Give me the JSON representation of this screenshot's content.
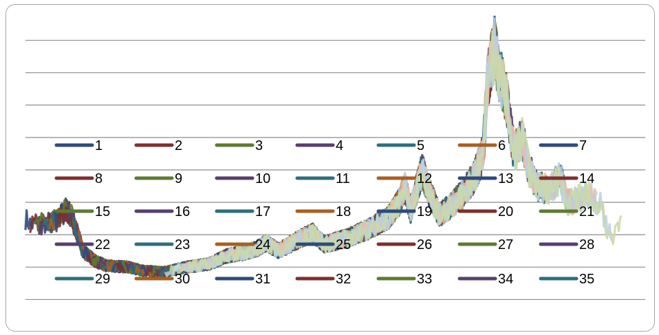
{
  "chart_data": {
    "type": "line",
    "title": "",
    "xlabel": "",
    "ylabel": "",
    "grid": true,
    "legend_position": "center-overlay",
    "x_count": 540,
    "ylim": [
      -3,
      15
    ],
    "y_gridlines": [
      -2,
      0,
      2,
      4,
      6,
      8,
      10,
      12,
      14
    ],
    "legend": [
      "1",
      "2",
      "3",
      "4",
      "5",
      "6",
      "7",
      "8",
      "9",
      "10",
      "11",
      "12",
      "13",
      "14",
      "15",
      "16",
      "17",
      "18",
      "19",
      "20",
      "21",
      "22",
      "23",
      "24",
      "25",
      "26",
      "27",
      "28",
      "29",
      "30",
      "31",
      "32",
      "33",
      "34",
      "35"
    ],
    "palette": [
      "#2e4a7d",
      "#7e2f2c",
      "#5e7a30",
      "#56406e",
      "#2e6f7a",
      "#a85f22",
      "#2e4a7d",
      "#7e2f2c",
      "#5e7a30",
      "#56406e",
      "#2e6f7a",
      "#a85f22",
      "#2e4a7d",
      "#7e2f2c",
      "#5e7a30",
      "#56406e",
      "#2e6f7a",
      "#a85f22",
      "#2e4a7d",
      "#7e2f2c",
      "#5e7a30",
      "#56406e",
      "#2e6f7a",
      "#a85f22",
      "#2e4a7d",
      "#7e2f2c",
      "#5e7a30",
      "#56406e",
      "#2e6f7a",
      "#a85f22",
      "#2e4a7d",
      "#7e2f2c",
      "#5e7a30",
      "#56406e",
      "#2e6f7a"
    ],
    "series_overview": [
      {
        "x": 0,
        "y": 3
      },
      {
        "x": 5,
        "y": 2.6
      },
      {
        "x": 15,
        "y": 2.7
      },
      {
        "x": 28,
        "y": 2.9
      },
      {
        "x": 35,
        "y": 3.6
      },
      {
        "x": 40,
        "y": 3.2
      },
      {
        "x": 50,
        "y": 1.0
      },
      {
        "x": 60,
        "y": 0.4
      },
      {
        "x": 70,
        "y": 0.1
      },
      {
        "x": 90,
        "y": 0.0
      },
      {
        "x": 100,
        "y": -0.2
      },
      {
        "x": 120,
        "y": -0.3
      },
      {
        "x": 140,
        "y": 0.0
      },
      {
        "x": 160,
        "y": 0.2
      },
      {
        "x": 175,
        "y": 0.7
      },
      {
        "x": 190,
        "y": 0.9
      },
      {
        "x": 200,
        "y": 1.1
      },
      {
        "x": 210,
        "y": 1.5
      },
      {
        "x": 220,
        "y": 1.0
      },
      {
        "x": 240,
        "y": 1.8
      },
      {
        "x": 250,
        "y": 2.1
      },
      {
        "x": 260,
        "y": 1.4
      },
      {
        "x": 280,
        "y": 1.8
      },
      {
        "x": 300,
        "y": 2.4
      },
      {
        "x": 315,
        "y": 3.0
      },
      {
        "x": 325,
        "y": 4.0
      },
      {
        "x": 330,
        "y": 5.0
      },
      {
        "x": 335,
        "y": 3.5
      },
      {
        "x": 345,
        "y": 6.0
      },
      {
        "x": 352,
        "y": 4.5
      },
      {
        "x": 360,
        "y": 3.2
      },
      {
        "x": 370,
        "y": 3.8
      },
      {
        "x": 380,
        "y": 4.5
      },
      {
        "x": 390,
        "y": 5.5
      },
      {
        "x": 398,
        "y": 7.0
      },
      {
        "x": 402,
        "y": 11.5
      },
      {
        "x": 408,
        "y": 13.5
      },
      {
        "x": 412,
        "y": 12.0
      },
      {
        "x": 418,
        "y": 10.5
      },
      {
        "x": 425,
        "y": 7.0
      },
      {
        "x": 432,
        "y": 8.0
      },
      {
        "x": 438,
        "y": 6.0
      },
      {
        "x": 445,
        "y": 5.0
      },
      {
        "x": 455,
        "y": 4.8
      },
      {
        "x": 465,
        "y": 5.5
      },
      {
        "x": 472,
        "y": 4.0
      },
      {
        "x": 480,
        "y": 4.2
      },
      {
        "x": 490,
        "y": 4.5
      },
      {
        "x": 500,
        "y": 3.8
      },
      {
        "x": 505,
        "y": 2.5
      },
      {
        "x": 512,
        "y": 1.8
      },
      {
        "x": 518,
        "y": 3.0
      },
      {
        "x": 524,
        "y": 4.0
      },
      {
        "x": 528,
        "y": 4.3
      },
      {
        "x": 533,
        "y": 2.0
      },
      {
        "x": 536,
        "y": 0.0
      },
      {
        "x": 540,
        "y": 0.0
      }
    ]
  }
}
